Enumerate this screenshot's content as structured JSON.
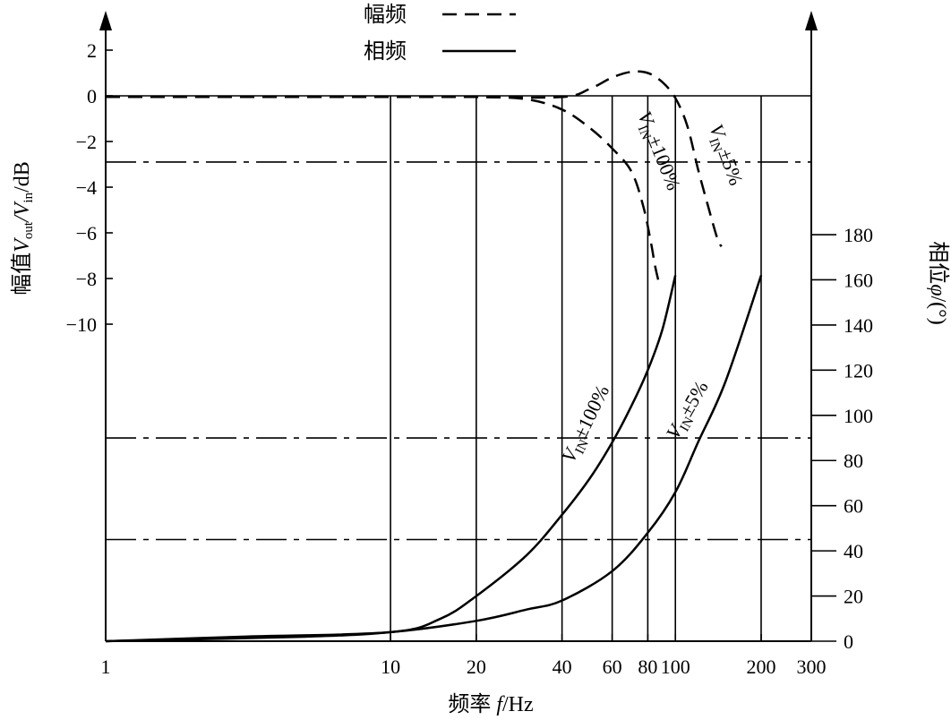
{
  "chart_data": {
    "type": "line",
    "x_scale": "log",
    "xlabel_text": "频率 ",
    "xlabel_var": "f",
    "xlabel_unit": "/Hz",
    "xlim": [
      1,
      300
    ],
    "x_ticks": [
      1,
      10,
      20,
      40,
      60,
      80,
      100,
      200,
      300
    ],
    "x_tick_labels": [
      "1",
      "10",
      "20",
      "40",
      "60",
      "80",
      "100",
      "200",
      "300"
    ],
    "vertical_gridlines": [
      10,
      20,
      40,
      60,
      80,
      100,
      200
    ],
    "left_axis": {
      "label_prefix": "幅值",
      "label_formula": "V",
      "label_sub1": "out",
      "label_slash": "/V",
      "label_sub2": "in",
      "label_unit": "/dB",
      "ticks": [
        2,
        0,
        -2,
        -4,
        -6,
        -8,
        -10
      ],
      "tick_labels": [
        "2",
        "0",
        "−2",
        "−4",
        "−6",
        "−8",
        "−10"
      ],
      "range": [
        -10,
        2
      ]
    },
    "right_axis": {
      "label_prefix": "相位",
      "label_var": "φ",
      "label_unit": "/(°)",
      "ticks": [
        0,
        20,
        40,
        60,
        80,
        100,
        120,
        140,
        160,
        180
      ],
      "tick_labels": [
        "0",
        "20",
        "40",
        "60",
        "80",
        "100",
        "120",
        "140",
        "160",
        "180"
      ],
      "range": [
        0,
        180
      ]
    },
    "reference_lines": [
      {
        "axis": "left",
        "value": 0,
        "style": "solid"
      },
      {
        "axis": "left",
        "value": -2.9,
        "style": "dashdot"
      },
      {
        "axis": "right",
        "value": 90,
        "style": "dashdot"
      },
      {
        "axis": "right",
        "value": 45,
        "style": "dashdot"
      }
    ],
    "legend": {
      "placement": "top-center",
      "items": [
        {
          "label": "幅频",
          "style": "dashed"
        },
        {
          "label": "相频",
          "style": "solid"
        }
      ]
    },
    "series": [
      {
        "key": "mag_100",
        "kind": "amplitude",
        "axis": "left",
        "style": "dashed",
        "label_main": "V",
        "label_sub": "IN",
        "label_tail": "±100%",
        "points": [
          [
            1,
            -0.05
          ],
          [
            10,
            -0.05
          ],
          [
            20,
            -0.05
          ],
          [
            30,
            -0.15
          ],
          [
            40,
            -0.6
          ],
          [
            50,
            -1.4
          ],
          [
            60,
            -2.3
          ],
          [
            70,
            -3.3
          ],
          [
            77,
            -4.8
          ],
          [
            82,
            -6.4
          ],
          [
            85,
            -7.5
          ],
          [
            88,
            -8.3
          ]
        ]
      },
      {
        "key": "mag_5",
        "kind": "amplitude",
        "axis": "left",
        "style": "dashed",
        "label_main": "V",
        "label_sub": "IN",
        "label_tail": "±5%",
        "points": [
          [
            1,
            -0.05
          ],
          [
            10,
            -0.05
          ],
          [
            20,
            -0.05
          ],
          [
            40,
            -0.05
          ],
          [
            50,
            0.3
          ],
          [
            60,
            0.8
          ],
          [
            70,
            1.05
          ],
          [
            80,
            1.0
          ],
          [
            90,
            0.6
          ],
          [
            100,
            -0.1
          ],
          [
            110,
            -1.3
          ],
          [
            120,
            -3.2
          ],
          [
            130,
            -4.8
          ],
          [
            140,
            -6.2
          ],
          [
            145,
            -6.6
          ]
        ]
      },
      {
        "key": "phase_100",
        "kind": "phase",
        "axis": "right",
        "style": "solid",
        "label_main": "V",
        "label_sub": "IN",
        "label_tail": "±100%",
        "points": [
          [
            1,
            0
          ],
          [
            3,
            2
          ],
          [
            10,
            4
          ],
          [
            15,
            10
          ],
          [
            20,
            20
          ],
          [
            30,
            38
          ],
          [
            40,
            56
          ],
          [
            50,
            72
          ],
          [
            60,
            88
          ],
          [
            70,
            104
          ],
          [
            80,
            120
          ],
          [
            90,
            138
          ],
          [
            100,
            162
          ]
        ]
      },
      {
        "key": "phase_5",
        "kind": "phase",
        "axis": "right",
        "style": "solid",
        "label_main": "V",
        "label_sub": "IN",
        "label_tail": "±5%",
        "points": [
          [
            1,
            0
          ],
          [
            5,
            2
          ],
          [
            10,
            4
          ],
          [
            20,
            9
          ],
          [
            30,
            14
          ],
          [
            40,
            18
          ],
          [
            60,
            31
          ],
          [
            80,
            48
          ],
          [
            100,
            66
          ],
          [
            120,
            88
          ],
          [
            150,
            115
          ],
          [
            200,
            162
          ]
        ]
      }
    ]
  }
}
